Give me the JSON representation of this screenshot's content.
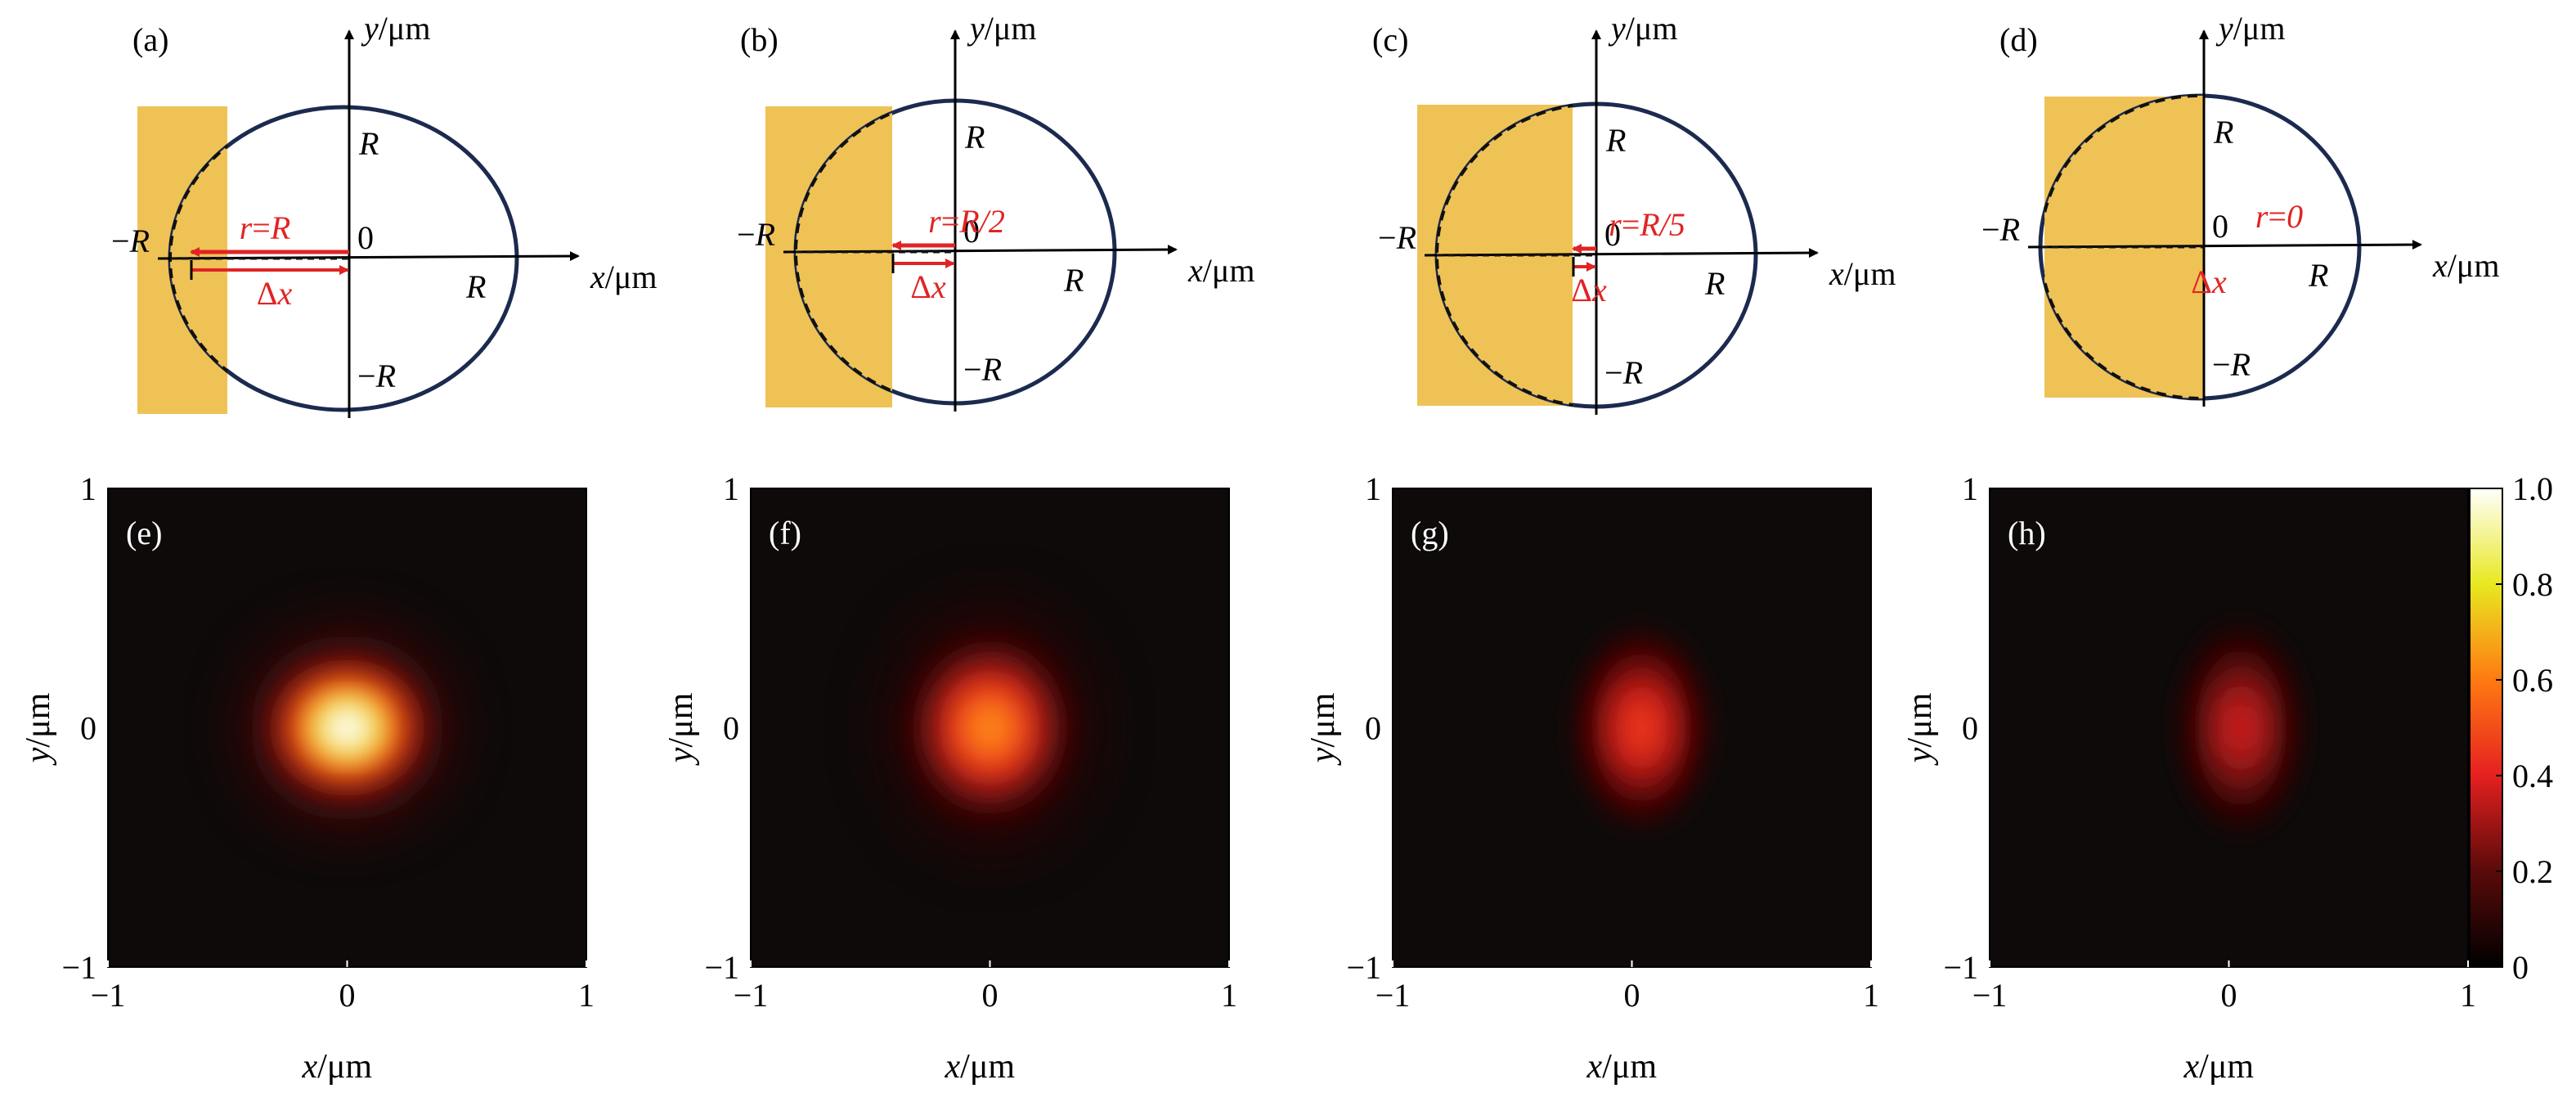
{
  "figure": {
    "schematics": [
      {
        "label": "(a)",
        "r_text": "r=R",
        "dx_text": "Δx",
        "axis": {
          "x": "x/μm",
          "y": "y/μm",
          "origin": "0",
          "pos": "R",
          "neg": "−R"
        }
      },
      {
        "label": "(b)",
        "r_text": "r=R/2",
        "dx_text": "Δx",
        "axis": {
          "x": "x/μm",
          "y": "y/μm",
          "origin": "0",
          "pos": "R",
          "neg": "−R"
        }
      },
      {
        "label": "(c)",
        "r_text": "r=R/5",
        "dx_text": "Δx",
        "axis": {
          "x": "x/μm",
          "y": "y/μm",
          "origin": "0",
          "pos": "R",
          "neg": "−R"
        }
      },
      {
        "label": "(d)",
        "r_text": "r=0",
        "dx_text": "Δx",
        "axis": {
          "x": "x/μm",
          "y": "y/μm",
          "origin": "0",
          "pos": "R",
          "neg": "−R"
        }
      }
    ],
    "colors": {
      "gold": "#efc256",
      "navy": "#1b2a4e",
      "red": "#e02424",
      "black": "#000000"
    }
  },
  "chart_data": [
    {
      "type": "heatmap",
      "label": "(e)",
      "xlabel": "x/μm",
      "ylabel": "y/μm",
      "xlim": [
        -1,
        1
      ],
      "ylim": [
        -1,
        1
      ],
      "xticks": [
        "−1",
        "0",
        "1"
      ],
      "yticks": [
        "−1",
        "0",
        "1"
      ],
      "peak_intensity": 1.0,
      "center": [
        0,
        0
      ],
      "spot_sigma": [
        0.17,
        0.15
      ],
      "ring": true
    },
    {
      "type": "heatmap",
      "label": "(f)",
      "xlabel": "x/μm",
      "ylabel": "y/μm",
      "xlim": [
        -1,
        1
      ],
      "ylim": [
        -1,
        1
      ],
      "xticks": [
        "−1",
        "0",
        "1"
      ],
      "yticks": [
        "−1",
        "0",
        "1"
      ],
      "peak_intensity": 0.62,
      "center": [
        0,
        0
      ],
      "spot_sigma": [
        0.17,
        0.19
      ],
      "ring": true
    },
    {
      "type": "heatmap",
      "label": "(g)",
      "xlabel": "x/μm",
      "ylabel": "y/μm",
      "xlim": [
        -1,
        1
      ],
      "ylim": [
        -1,
        1
      ],
      "xticks": [
        "−1",
        "0",
        "1"
      ],
      "yticks": [
        "−1",
        "0",
        "1"
      ],
      "peak_intensity": 0.45,
      "center": [
        0.04,
        0
      ],
      "spot_sigma": [
        0.14,
        0.21
      ],
      "ring": false
    },
    {
      "type": "heatmap",
      "label": "(h)",
      "xlabel": "x/μm",
      "ylabel": "y/μm",
      "xlim": [
        -1,
        1
      ],
      "ylim": [
        -1,
        1
      ],
      "xticks": [
        "−1",
        "0",
        "1"
      ],
      "yticks": [
        "−1",
        "0",
        "1"
      ],
      "peak_intensity": 0.36,
      "center": [
        0.05,
        0
      ],
      "spot_sigma": [
        0.13,
        0.22
      ],
      "ring": false
    },
    {
      "type": "colorbar",
      "range": [
        0,
        1
      ],
      "ticks": [
        "0",
        "0.2",
        "0.4",
        "0.6",
        "0.8",
        "1.0"
      ],
      "colormap": "hot"
    }
  ]
}
